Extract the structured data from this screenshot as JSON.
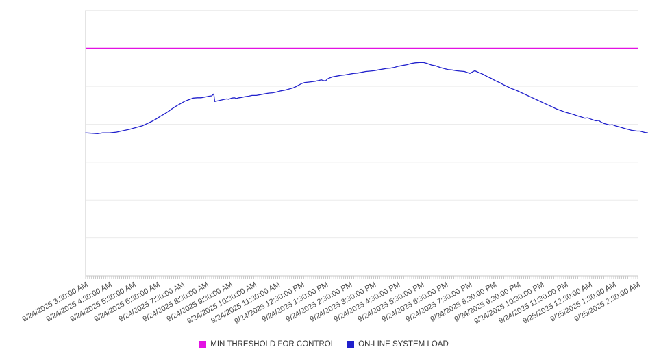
{
  "chart_data": {
    "type": "line",
    "title": "",
    "grid": true,
    "legend_position": "bottom-center",
    "y_axis_labels": [],
    "ylim": [
      0,
      7
    ],
    "y_gridline_interval": 1,
    "x_hours_span": 23,
    "x_minor_ticks_per_hour": 12,
    "x_tick_labels": [
      "9/24/2025 3:30:00 AM",
      "9/24/2025 4:30:00 AM",
      "9/24/2025 5:30:00 AM",
      "9/24/2025 6:30:00 AM",
      "9/24/2025 7:30:00 AM",
      "9/24/2025 8:30:00 AM",
      "9/24/2025 9:30:00 AM",
      "9/24/2025 10:30:00 AM",
      "9/24/2025 11:30:00 AM",
      "9/24/2025 12:30:00 PM",
      "9/24/2025 1:30:00 PM",
      "9/24/2025 2:30:00 PM",
      "9/24/2025 3:30:00 PM",
      "9/24/2025 4:30:00 PM",
      "9/24/2025 5:30:00 PM",
      "9/24/2025 6:30:00 PM",
      "9/24/2025 7:30:00 PM",
      "9/24/2025 8:30:00 PM",
      "9/24/2025 9:30:00 PM",
      "9/24/2025 10:30:00 PM",
      "9/24/2025 11:30:00 PM",
      "9/25/2025 12:30:00 AM",
      "9/25/2025 1:30:00 AM",
      "9/25/2025 2:30:00 AM"
    ],
    "series": [
      {
        "name": "MIN THRESHOLD FOR CONTROL",
        "kind": "threshold",
        "color": "#e312e3",
        "value": 6.0
      },
      {
        "name": "ON-LINE SYSTEM LOAD",
        "kind": "line",
        "color": "#2020cc",
        "points": [
          [
            0,
            3.77
          ],
          [
            0.29,
            3.76
          ],
          [
            0.49,
            3.75
          ],
          [
            0.71,
            3.77
          ],
          [
            1,
            3.77
          ],
          [
            1.28,
            3.79
          ],
          [
            1.57,
            3.83
          ],
          [
            1.85,
            3.87
          ],
          [
            2.14,
            3.92
          ],
          [
            2.37,
            3.96
          ],
          [
            2.57,
            4.02
          ],
          [
            2.77,
            4.08
          ],
          [
            2.94,
            4.14
          ],
          [
            3.11,
            4.21
          ],
          [
            3.28,
            4.27
          ],
          [
            3.45,
            4.34
          ],
          [
            3.62,
            4.42
          ],
          [
            3.8,
            4.49
          ],
          [
            3.97,
            4.55
          ],
          [
            4.14,
            4.61
          ],
          [
            4.31,
            4.65
          ],
          [
            4.48,
            4.69
          ],
          [
            4.65,
            4.7
          ],
          [
            4.82,
            4.7
          ],
          [
            4.99,
            4.72
          ],
          [
            5.14,
            4.74
          ],
          [
            5.25,
            4.75
          ],
          [
            5.34,
            4.8
          ],
          [
            5.38,
            4.6
          ],
          [
            5.51,
            4.62
          ],
          [
            5.65,
            4.64
          ],
          [
            5.79,
            4.66
          ],
          [
            5.88,
            4.67
          ],
          [
            5.96,
            4.66
          ],
          [
            6.08,
            4.69
          ],
          [
            6.19,
            4.7
          ],
          [
            6.28,
            4.68
          ],
          [
            6.39,
            4.7
          ],
          [
            6.51,
            4.71
          ],
          [
            6.65,
            4.73
          ],
          [
            6.79,
            4.74
          ],
          [
            6.93,
            4.76
          ],
          [
            7.11,
            4.76
          ],
          [
            7.28,
            4.78
          ],
          [
            7.45,
            4.8
          ],
          [
            7.62,
            4.82
          ],
          [
            7.79,
            4.83
          ],
          [
            7.96,
            4.85
          ],
          [
            8.13,
            4.88
          ],
          [
            8.3,
            4.9
          ],
          [
            8.48,
            4.93
          ],
          [
            8.65,
            4.96
          ],
          [
            8.79,
            5
          ],
          [
            8.9,
            5.04
          ],
          [
            8.99,
            5.07
          ],
          [
            9.13,
            5.1
          ],
          [
            9.27,
            5.11
          ],
          [
            9.42,
            5.12
          ],
          [
            9.56,
            5.13
          ],
          [
            9.7,
            5.15
          ],
          [
            9.82,
            5.17
          ],
          [
            9.9,
            5.15
          ],
          [
            9.99,
            5.14
          ],
          [
            10.07,
            5.19
          ],
          [
            10.16,
            5.22
          ],
          [
            10.3,
            5.25
          ],
          [
            10.47,
            5.27
          ],
          [
            10.64,
            5.29
          ],
          [
            10.81,
            5.3
          ],
          [
            10.99,
            5.32
          ],
          [
            11.16,
            5.34
          ],
          [
            11.33,
            5.35
          ],
          [
            11.5,
            5.37
          ],
          [
            11.67,
            5.39
          ],
          [
            11.84,
            5.4
          ],
          [
            12.01,
            5.41
          ],
          [
            12.18,
            5.43
          ],
          [
            12.36,
            5.45
          ],
          [
            12.53,
            5.47
          ],
          [
            12.7,
            5.48
          ],
          [
            12.87,
            5.5
          ],
          [
            13.04,
            5.53
          ],
          [
            13.21,
            5.55
          ],
          [
            13.38,
            5.57
          ],
          [
            13.55,
            5.6
          ],
          [
            13.73,
            5.62
          ],
          [
            13.9,
            5.63
          ],
          [
            14.07,
            5.63
          ],
          [
            14.24,
            5.6
          ],
          [
            14.41,
            5.56
          ],
          [
            14.58,
            5.54
          ],
          [
            14.75,
            5.5
          ],
          [
            14.92,
            5.47
          ],
          [
            15.1,
            5.44
          ],
          [
            15.27,
            5.43
          ],
          [
            15.44,
            5.41
          ],
          [
            15.61,
            5.4
          ],
          [
            15.78,
            5.39
          ],
          [
            15.92,
            5.36
          ],
          [
            16.01,
            5.34
          ],
          [
            16.12,
            5.38
          ],
          [
            16.21,
            5.41
          ],
          [
            16.32,
            5.38
          ],
          [
            16.44,
            5.35
          ],
          [
            16.58,
            5.31
          ],
          [
            16.72,
            5.26
          ],
          [
            16.89,
            5.21
          ],
          [
            17.06,
            5.15
          ],
          [
            17.24,
            5.1
          ],
          [
            17.41,
            5.04
          ],
          [
            17.58,
            4.99
          ],
          [
            17.75,
            4.94
          ],
          [
            17.92,
            4.9
          ],
          [
            18.09,
            4.85
          ],
          [
            18.26,
            4.8
          ],
          [
            18.44,
            4.75
          ],
          [
            18.61,
            4.7
          ],
          [
            18.78,
            4.65
          ],
          [
            18.95,
            4.6
          ],
          [
            19.12,
            4.55
          ],
          [
            19.29,
            4.5
          ],
          [
            19.46,
            4.45
          ],
          [
            19.63,
            4.4
          ],
          [
            19.81,
            4.36
          ],
          [
            19.98,
            4.32
          ],
          [
            20.15,
            4.29
          ],
          [
            20.32,
            4.26
          ],
          [
            20.49,
            4.22
          ],
          [
            20.66,
            4.19
          ],
          [
            20.8,
            4.16
          ],
          [
            20.92,
            4.17
          ],
          [
            21.03,
            4.14
          ],
          [
            21.15,
            4.11
          ],
          [
            21.26,
            4.09
          ],
          [
            21.37,
            4.1
          ],
          [
            21.49,
            4.05
          ],
          [
            21.6,
            4.02
          ],
          [
            21.72,
            4
          ],
          [
            21.83,
            3.98
          ],
          [
            21.94,
            3.99
          ],
          [
            22.06,
            3.96
          ],
          [
            22.17,
            3.94
          ],
          [
            22.29,
            3.92
          ],
          [
            22.4,
            3.9
          ],
          [
            22.51,
            3.88
          ],
          [
            22.63,
            3.86
          ],
          [
            22.74,
            3.84
          ],
          [
            22.86,
            3.83
          ],
          [
            22.97,
            3.82
          ],
          [
            23.08,
            3.82
          ],
          [
            23.2,
            3.8
          ],
          [
            23.31,
            3.78
          ],
          [
            23.43,
            3.77
          ]
        ]
      }
    ],
    "legend": [
      {
        "label": "MIN THRESHOLD FOR CONTROL"
      },
      {
        "label": "ON-LINE SYSTEM LOAD"
      }
    ]
  }
}
